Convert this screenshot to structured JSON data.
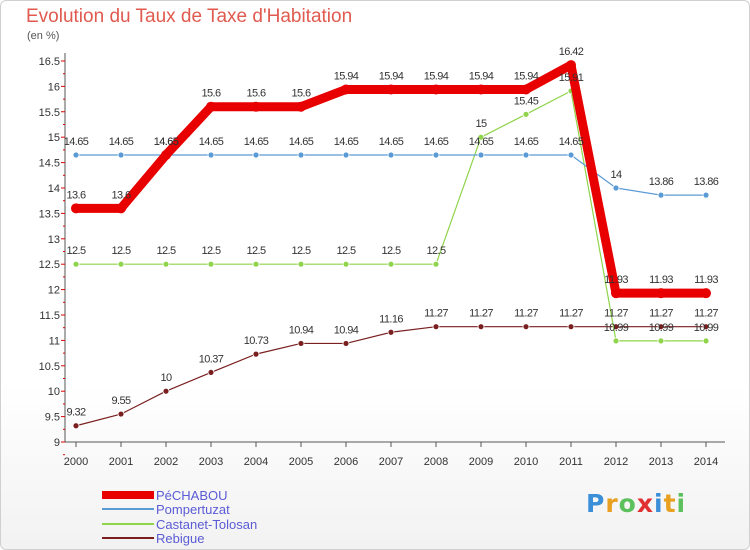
{
  "chart_data": {
    "type": "line",
    "title": "Evolution du Taux de Taxe d'Habitation",
    "unit": "(en %)",
    "x": [
      2000,
      2001,
      2002,
      2003,
      2004,
      2005,
      2006,
      2007,
      2008,
      2009,
      2010,
      2011,
      2012,
      2013,
      2014
    ],
    "ylim": [
      9,
      16.5
    ],
    "yticks": [
      9,
      9.5,
      10,
      10.5,
      11,
      11.5,
      12,
      12.5,
      13,
      13.5,
      14,
      14.5,
      15,
      15.5,
      16,
      16.5
    ],
    "grid": false,
    "legend_position": "bottom-left",
    "series": [
      {
        "name": "PéCHABOU",
        "color": "#e80000",
        "width": 9,
        "values": [
          13.6,
          13.6,
          14.65,
          15.6,
          15.6,
          15.6,
          15.94,
          15.94,
          15.94,
          15.94,
          15.94,
          16.42,
          11.93,
          11.93,
          11.93
        ],
        "labels": [
          "13.6",
          "13.6",
          "14.65",
          "15.6",
          "15.6",
          "15.6",
          "15.94",
          "15.94",
          "15.94",
          "15.94",
          "15.94",
          "16.42",
          "11.93",
          "11.93",
          "11.93"
        ]
      },
      {
        "name": "Pompertuzat",
        "color": "#5b9bd5",
        "width": 1.2,
        "values": [
          14.65,
          14.65,
          14.65,
          14.65,
          14.65,
          14.65,
          14.65,
          14.65,
          14.65,
          14.65,
          14.65,
          14.65,
          14,
          13.86,
          13.86
        ],
        "labels": [
          "14.65",
          "14.65",
          "14.65",
          "14.65",
          "14.65",
          "14.65",
          "14.65",
          "14.65",
          "14.65",
          "14.65",
          "14.65",
          "14.65",
          "14",
          "13.86",
          "13.86"
        ]
      },
      {
        "name": "Castanet-Tolosan",
        "color": "#8fd44a",
        "width": 1.2,
        "values": [
          12.5,
          12.5,
          12.5,
          12.5,
          12.5,
          12.5,
          12.5,
          12.5,
          12.5,
          15,
          15.45,
          15.91,
          10.99,
          10.99,
          10.99
        ],
        "labels": [
          "12.5",
          "12.5",
          "12.5",
          "12.5",
          "12.5",
          "12.5",
          "12.5",
          "12.5",
          "12.5",
          "15",
          "15.45",
          "15.91",
          "10.99",
          "10.99",
          "10.99"
        ]
      },
      {
        "name": "Rebigue",
        "color": "#7a1f1f",
        "width": 1.2,
        "values": [
          9.32,
          9.55,
          10,
          10.37,
          10.73,
          10.94,
          10.94,
          11.16,
          11.27,
          11.27,
          11.27,
          11.27,
          11.27,
          11.27,
          11.27
        ],
        "labels": [
          "9.32",
          "9.55",
          "10",
          "10.37",
          "10.73",
          "10.94",
          "10.94",
          "11.16",
          "11.27",
          "11.27",
          "11.27",
          "11.27",
          "11.27",
          "11.27",
          "11.27"
        ]
      }
    ]
  },
  "logo": {
    "text": "Proxiti",
    "colors": [
      "#3a8fd8",
      "#e8a020",
      "#5cc05c",
      "#e03030",
      "#3a8fd8",
      "#e8a020",
      "#5cc05c"
    ]
  }
}
